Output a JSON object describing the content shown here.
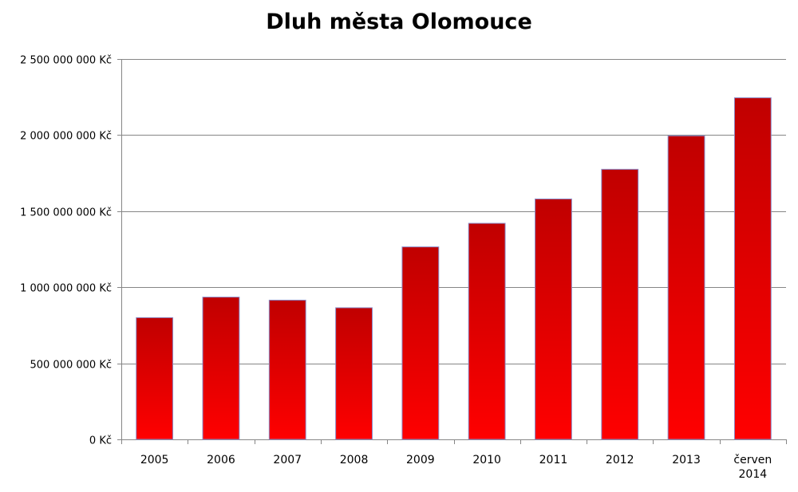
{
  "chart_data": {
    "type": "bar",
    "title": "Dluh města Olomouce",
    "xlabel": "",
    "ylabel": "",
    "categories": [
      "2005",
      "2006",
      "2007",
      "2008",
      "2009",
      "2010",
      "2011",
      "2012",
      "2013",
      "červen 2014"
    ],
    "values": [
      800000000,
      935000000,
      915000000,
      865000000,
      1265000000,
      1420000000,
      1580000000,
      1775000000,
      1995000000,
      2245000000
    ],
    "ylim": [
      0,
      2500000000
    ],
    "yticks": [
      0,
      500000000,
      1000000000,
      1500000000,
      2000000000,
      2500000000
    ],
    "ytick_labels": [
      "0 Kč",
      "500 000 000 Kč",
      "1 000 000 000 Kč",
      "1 500 000 000 Kč",
      "2 000 000 000 Kč",
      "2 500 000 000 Kč"
    ],
    "grid": true,
    "legend": "none",
    "colors": {
      "bar_top": "#c00000",
      "bar_bottom": "#ff0000",
      "bar_edge": "#8a8ac8",
      "grid": "#868686",
      "axis": "#868686",
      "text": "#000000"
    }
  }
}
